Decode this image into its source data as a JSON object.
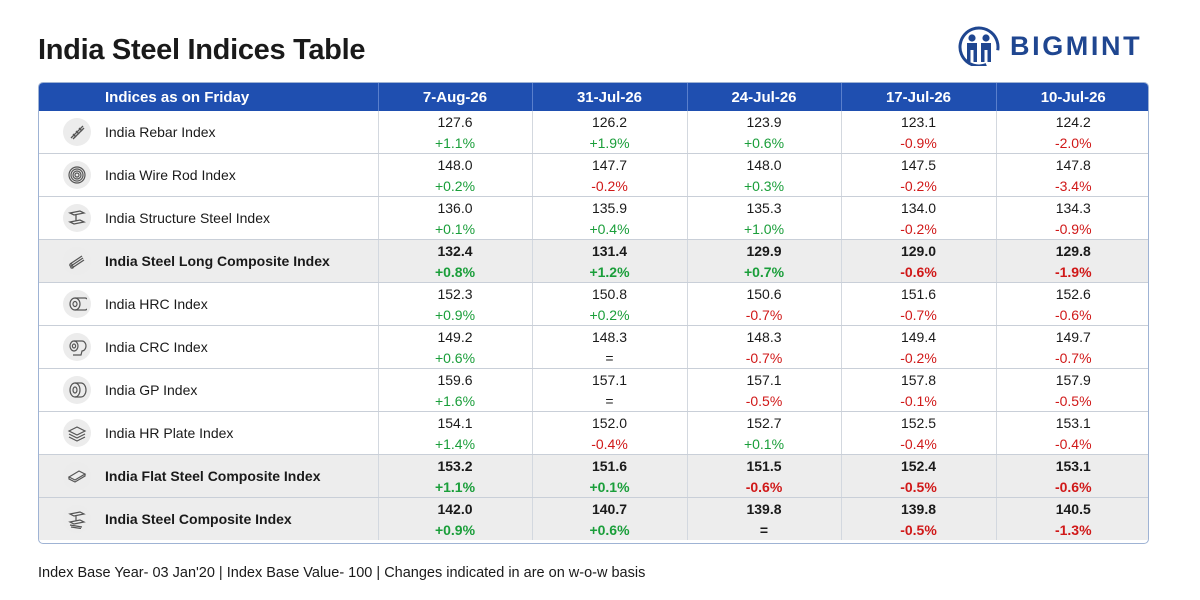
{
  "title": "India Steel Indices Table",
  "logo": {
    "text": "BIGMINT",
    "color": "#1f4690"
  },
  "colors": {
    "header_bg": "#1f4fb0",
    "positive": "#1a9e3a",
    "negative": "#d01818",
    "composite_bg": "#ededed"
  },
  "table": {
    "headers": [
      "Indices as on Friday",
      "7-Aug-26",
      "31-Jul-26",
      "24-Jul-26",
      "17-Jul-26",
      "10-Jul-26"
    ],
    "rows": [
      {
        "name": "India Rebar Index",
        "icon": "rebar-icon",
        "composite": false,
        "values": [
          "127.6",
          "126.2",
          "123.9",
          "123.1",
          "124.2"
        ],
        "changes": [
          "+1.1%",
          "+1.9%",
          "+0.6%",
          "-0.9%",
          "-2.0%"
        ]
      },
      {
        "name": "India Wire Rod Index",
        "icon": "wire-coil-icon",
        "composite": false,
        "values": [
          "148.0",
          "147.7",
          "148.0",
          "147.5",
          "147.8"
        ],
        "changes": [
          "+0.2%",
          "-0.2%",
          "+0.3%",
          "-0.2%",
          "-3.4%"
        ]
      },
      {
        "name": "India Structure Steel Index",
        "icon": "i-beam-icon",
        "composite": false,
        "values": [
          "136.0",
          "135.9",
          "135.3",
          "134.0",
          "134.3"
        ],
        "changes": [
          "+0.1%",
          "+0.4%",
          "+1.0%",
          "-0.2%",
          "-0.9%"
        ]
      },
      {
        "name": "India Steel Long Composite Index",
        "icon": "rebar-bundle-icon",
        "composite": true,
        "values": [
          "132.4",
          "131.4",
          "129.9",
          "129.0",
          "129.8"
        ],
        "changes": [
          "+0.8%",
          "+1.2%",
          "+0.7%",
          "-0.6%",
          "-1.9%"
        ]
      },
      {
        "name": "India HRC Index",
        "icon": "hr-coil-icon",
        "composite": false,
        "values": [
          "152.3",
          "150.8",
          "150.6",
          "151.6",
          "152.6"
        ],
        "changes": [
          "+0.9%",
          "+0.2%",
          "-0.7%",
          "-0.7%",
          "-0.6%"
        ]
      },
      {
        "name": "India CRC Index",
        "icon": "cr-coil-icon",
        "composite": false,
        "values": [
          "149.2",
          "148.3",
          "148.3",
          "149.4",
          "149.7"
        ],
        "changes": [
          "+0.6%",
          "=",
          "-0.7%",
          "-0.2%",
          "-0.7%"
        ]
      },
      {
        "name": "India GP Index",
        "icon": "gp-coil-icon",
        "composite": false,
        "values": [
          "159.6",
          "157.1",
          "157.1",
          "157.8",
          "157.9"
        ],
        "changes": [
          "+1.6%",
          "=",
          "-0.5%",
          "-0.1%",
          "-0.5%"
        ]
      },
      {
        "name": "India HR Plate Index",
        "icon": "plate-stack-icon",
        "composite": false,
        "values": [
          "154.1",
          "152.0",
          "152.7",
          "152.5",
          "153.1"
        ],
        "changes": [
          "+1.4%",
          "-0.4%",
          "+0.1%",
          "-0.4%",
          "-0.4%"
        ]
      },
      {
        "name": "India Flat Steel Composite Index",
        "icon": "flat-sheet-icon",
        "composite": true,
        "values": [
          "153.2",
          "151.6",
          "151.5",
          "152.4",
          "153.1"
        ],
        "changes": [
          "+1.1%",
          "+0.1%",
          "-0.6%",
          "-0.5%",
          "-0.6%"
        ]
      },
      {
        "name": "India Steel Composite Index",
        "icon": "beam-composite-icon",
        "composite": true,
        "values": [
          "142.0",
          "140.7",
          "139.8",
          "139.8",
          "140.5"
        ],
        "changes": [
          "+0.9%",
          "+0.6%",
          "=",
          "-0.5%",
          "-1.3%"
        ]
      }
    ]
  },
  "footer": "Index Base Year- 03 Jan'20 | Index Base Value- 100 | Changes indicated in are on w-o-w basis"
}
